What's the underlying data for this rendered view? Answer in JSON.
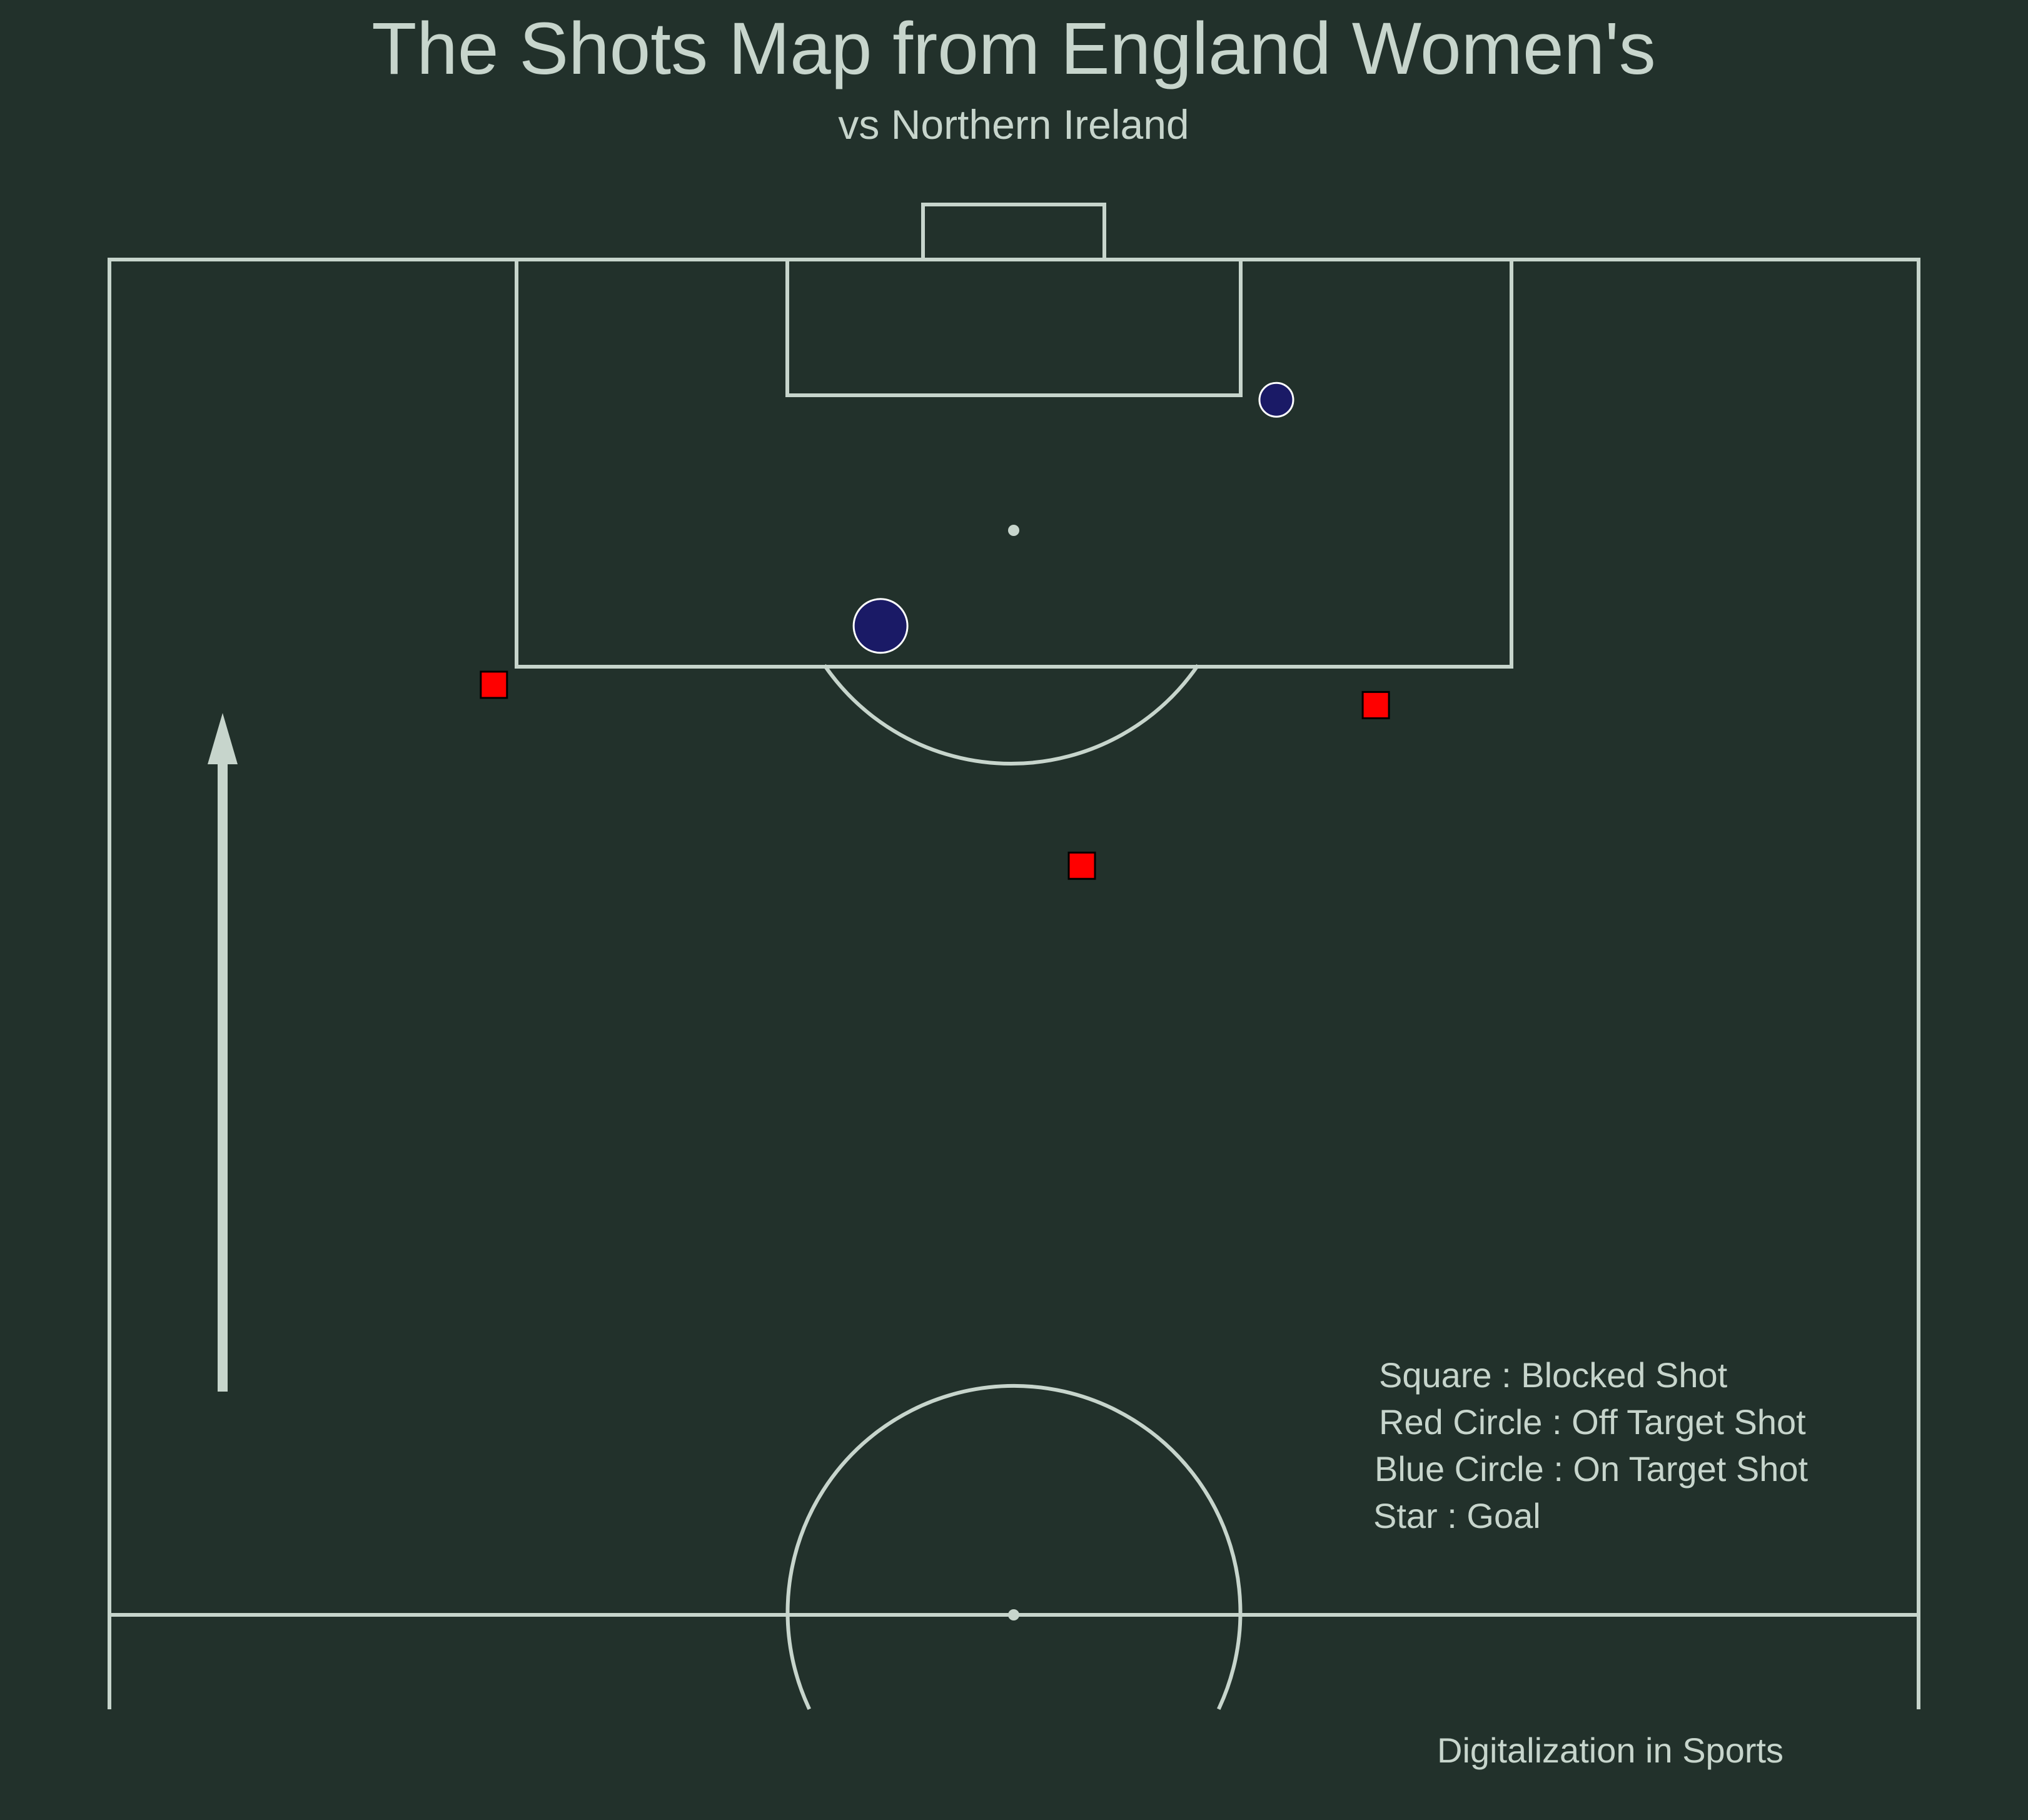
{
  "colors": {
    "background": "#22312b",
    "lines": "#c7d5cc",
    "on_target": "#1a1a66",
    "blocked": "#ff0000",
    "marker_edge_on_target": "#ffffff",
    "marker_edge_blocked": "#000000"
  },
  "chart_data": {
    "type": "scatter",
    "pitch": {
      "units": "StatsBomb 120 x 80",
      "view": "vertical half pitch",
      "shown_x_range": [
        60,
        120
      ],
      "shown_y_range": [
        0,
        80
      ],
      "grid": false
    },
    "title": "The Shots Map from England Women's",
    "subtitle": "vs Northern Ireland",
    "series": [
      {
        "name": "Blocked Shot",
        "marker": "square",
        "points": [
          {
            "x": 101.2,
            "y": 17.0
          },
          {
            "x": 100.3,
            "y": 56.0
          },
          {
            "x": 93.2,
            "y": 43.0
          }
        ]
      },
      {
        "name": "On Target Shot",
        "marker": "circle",
        "points": [
          {
            "x": 113.8,
            "y": 51.6,
            "size": 1
          },
          {
            "x": 103.8,
            "y": 34.1,
            "size": 2
          }
        ]
      }
    ],
    "legend": {
      "placement": "bottom-right",
      "entries": [
        "Square : Blocked Shot",
        "Red Circle : Off Target Shot",
        "Blue Circle : On Target Shot",
        "Star : Goal"
      ]
    },
    "direction": "attacking upward",
    "credit": "Digitalization in Sports"
  }
}
